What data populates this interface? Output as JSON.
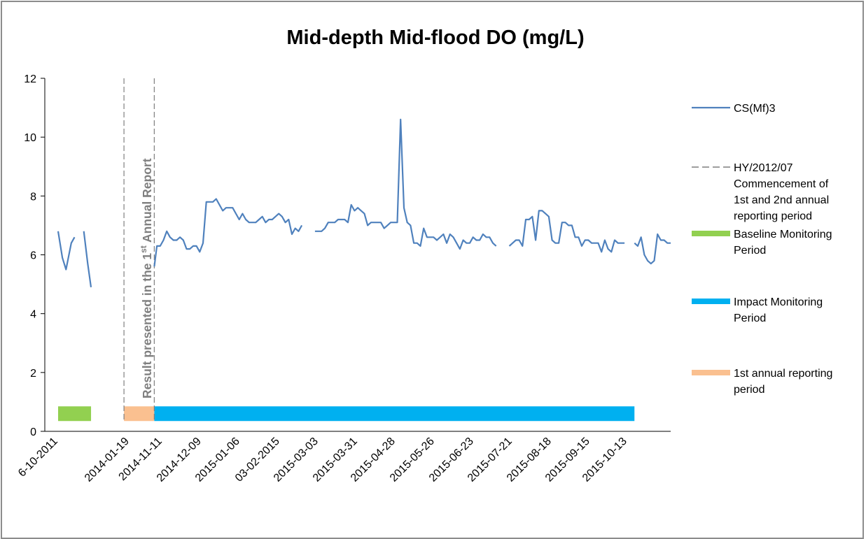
{
  "chart_data": {
    "type": "line",
    "title": "Mid-depth Mid-flood DO (mg/L)",
    "xlabel": "",
    "ylabel": "",
    "ylim": [
      0,
      12
    ],
    "yticks": [
      "0",
      "2",
      "4",
      "6",
      "8",
      "10",
      "12"
    ],
    "xtick_labels": [
      "6-10-2011",
      "2014-01-19",
      "2014-11-11",
      "2014-12-09",
      "2015-01-06",
      "03-02-2015",
      "2015-03-03",
      "2015-03-31",
      "2015-04-28",
      "2015-05-26",
      "2015-06-23",
      "2015-07-21",
      "2015-08-18",
      "2015-09-15",
      "2015-10-13"
    ],
    "grid": false,
    "legend_position": "right",
    "series": [
      {
        "name": "CS(Mf)3",
        "color": "#4f81bd",
        "x_note": "sample sequence (x positions follow the categorical date axis)",
        "segments": [
          [
            [
              0.0,
              6.8
            ],
            [
              0.13,
              5.9
            ],
            [
              0.24,
              5.5
            ],
            [
              0.4,
              6.4
            ],
            [
              0.5,
              6.6
            ]
          ],
          [
            [
              0.78,
              6.8
            ],
            [
              0.9,
              5.7
            ],
            [
              1.0,
              4.9
            ]
          ],
          [
            [
              2.92,
              5.6
            ],
            [
              3.0,
              6.3
            ],
            [
              3.1,
              6.3
            ],
            [
              3.2,
              6.5
            ],
            [
              3.3,
              6.8
            ],
            [
              3.4,
              6.6
            ],
            [
              3.5,
              6.5
            ],
            [
              3.6,
              6.5
            ],
            [
              3.7,
              6.6
            ],
            [
              3.8,
              6.5
            ],
            [
              3.9,
              6.2
            ],
            [
              4.0,
              6.2
            ],
            [
              4.1,
              6.3
            ],
            [
              4.2,
              6.3
            ],
            [
              4.3,
              6.1
            ],
            [
              4.4,
              6.4
            ],
            [
              4.5,
              7.8
            ],
            [
              4.6,
              7.8
            ],
            [
              4.7,
              7.8
            ],
            [
              4.8,
              7.9
            ],
            [
              4.9,
              7.7
            ],
            [
              5.0,
              7.5
            ],
            [
              5.1,
              7.6
            ],
            [
              5.2,
              7.6
            ],
            [
              5.3,
              7.6
            ],
            [
              5.4,
              7.4
            ],
            [
              5.5,
              7.2
            ],
            [
              5.6,
              7.4
            ],
            [
              5.7,
              7.2
            ],
            [
              5.8,
              7.1
            ],
            [
              5.9,
              7.1
            ],
            [
              6.0,
              7.1
            ],
            [
              6.1,
              7.2
            ],
            [
              6.2,
              7.3
            ],
            [
              6.3,
              7.1
            ],
            [
              6.4,
              7.2
            ],
            [
              6.5,
              7.2
            ],
            [
              6.6,
              7.3
            ],
            [
              6.7,
              7.4
            ],
            [
              6.8,
              7.3
            ],
            [
              6.9,
              7.1
            ],
            [
              7.0,
              7.2
            ],
            [
              7.1,
              6.7
            ],
            [
              7.2,
              6.9
            ],
            [
              7.3,
              6.8
            ],
            [
              7.4,
              7.0
            ]
          ]
        ],
        "extra_segments": [
          [
            [
              7.8,
              6.8
            ],
            [
              8.0,
              6.8
            ],
            [
              8.1,
              6.9
            ],
            [
              8.2,
              7.1
            ],
            [
              8.3,
              7.1
            ],
            [
              8.4,
              7.1
            ],
            [
              8.5,
              7.2
            ],
            [
              8.6,
              7.2
            ],
            [
              8.7,
              7.2
            ],
            [
              8.8,
              7.1
            ],
            [
              8.9,
              7.7
            ],
            [
              9.0,
              7.5
            ],
            [
              9.1,
              7.6
            ],
            [
              9.2,
              7.5
            ],
            [
              9.3,
              7.4
            ],
            [
              9.4,
              7.0
            ],
            [
              9.5,
              7.1
            ],
            [
              9.6,
              7.1
            ],
            [
              9.7,
              7.1
            ],
            [
              9.8,
              7.1
            ],
            [
              9.9,
              6.9
            ],
            [
              10.0,
              7.0
            ],
            [
              10.1,
              7.1
            ],
            [
              10.3,
              7.1
            ],
            [
              10.4,
              10.6
            ],
            [
              10.5,
              7.6
            ],
            [
              10.6,
              7.1
            ],
            [
              10.7,
              7.0
            ],
            [
              10.8,
              6.4
            ],
            [
              10.9,
              6.4
            ],
            [
              11.0,
              6.3
            ],
            [
              11.1,
              6.9
            ],
            [
              11.2,
              6.6
            ],
            [
              11.3,
              6.6
            ],
            [
              11.4,
              6.6
            ],
            [
              11.5,
              6.5
            ],
            [
              11.6,
              6.6
            ],
            [
              11.7,
              6.7
            ],
            [
              11.8,
              6.4
            ],
            [
              11.9,
              6.7
            ],
            [
              12.0,
              6.6
            ],
            [
              12.1,
              6.4
            ],
            [
              12.2,
              6.2
            ],
            [
              12.3,
              6.5
            ],
            [
              12.4,
              6.4
            ],
            [
              12.5,
              6.4
            ],
            [
              12.6,
              6.6
            ],
            [
              12.7,
              6.5
            ],
            [
              12.8,
              6.5
            ],
            [
              12.9,
              6.7
            ],
            [
              13.0,
              6.6
            ],
            [
              13.1,
              6.6
            ],
            [
              13.2,
              6.4
            ],
            [
              13.3,
              6.3
            ]
          ],
          [
            [
              13.7,
              6.3
            ],
            [
              13.8,
              6.4
            ],
            [
              13.9,
              6.5
            ],
            [
              14.0,
              6.5
            ],
            [
              14.1,
              6.3
            ],
            [
              14.2,
              7.2
            ],
            [
              14.3,
              7.2
            ],
            [
              14.4,
              7.3
            ],
            [
              14.5,
              6.5
            ],
            [
              14.6,
              7.5
            ],
            [
              14.7,
              7.5
            ],
            [
              14.8,
              7.4
            ],
            [
              14.9,
              7.3
            ],
            [
              15.0,
              6.5
            ],
            [
              15.1,
              6.4
            ],
            [
              15.2,
              6.4
            ],
            [
              15.3,
              7.1
            ],
            [
              15.4,
              7.1
            ],
            [
              15.5,
              7.0
            ],
            [
              15.6,
              7.0
            ],
            [
              15.7,
              6.6
            ],
            [
              15.8,
              6.6
            ],
            [
              15.9,
              6.3
            ],
            [
              16.0,
              6.5
            ],
            [
              16.1,
              6.5
            ],
            [
              16.2,
              6.4
            ],
            [
              16.3,
              6.4
            ],
            [
              16.4,
              6.4
            ],
            [
              16.5,
              6.1
            ],
            [
              16.6,
              6.5
            ],
            [
              16.7,
              6.2
            ],
            [
              16.8,
              6.1
            ],
            [
              16.9,
              6.5
            ],
            [
              17.0,
              6.4
            ],
            [
              17.1,
              6.4
            ],
            [
              17.2,
              6.4
            ]
          ],
          [
            [
              17.5,
              6.4
            ],
            [
              17.6,
              6.3
            ],
            [
              17.7,
              6.6
            ],
            [
              17.8,
              6.0
            ],
            [
              17.9,
              5.8
            ],
            [
              18.0,
              5.7
            ],
            [
              18.1,
              5.8
            ],
            [
              18.2,
              6.7
            ],
            [
              18.3,
              6.5
            ],
            [
              18.4,
              6.5
            ],
            [
              18.5,
              6.4
            ],
            [
              18.6,
              6.4
            ]
          ]
        ]
      }
    ],
    "period_bars": [
      {
        "name": "Baseline Monitoring Period",
        "color": "#92d050",
        "x_start": 0.0,
        "x_end": 1.0,
        "y": 0.6
      },
      {
        "name": "1st annual reporting period",
        "color": "#fac090",
        "x_start": 2.0,
        "x_end": 2.92,
        "y": 0.6
      },
      {
        "name": "Impact Monitoring Period",
        "color": "#00b0f0",
        "x_start": 2.92,
        "x_end": 17.5,
        "y": 0.6
      }
    ],
    "vertical_lines": [
      {
        "name": "HY/2012/07 Commencement of 1st and 2nd annual reporting period",
        "x": 2.0,
        "style": "dashed",
        "color": "#7f7f7f"
      },
      {
        "name": "HY/2012/07 Commencement of 1st and 2nd annual reporting period",
        "x": 2.92,
        "style": "dashed",
        "color": "#7f7f7f"
      }
    ],
    "annotation": {
      "text_main": "Result presented in the 1",
      "text_sup": "st",
      "text_end": " Annual Report",
      "color": "#7f7f7f"
    },
    "legend": [
      {
        "kind": "line",
        "color": "#4f81bd",
        "lines": [
          "CS(Mf)3"
        ]
      },
      {
        "kind": "dash",
        "color": "#7f7f7f",
        "lines": [
          "HY/2012/07",
          "Commencement of",
          "1st and 2nd annual",
          "reporting period"
        ]
      },
      {
        "kind": "bar",
        "color": "#92d050",
        "lines": [
          "Baseline Monitoring",
          "Period"
        ]
      },
      {
        "kind": "bar",
        "color": "#00b0f0",
        "lines": [
          "Impact Monitoring",
          "Period"
        ]
      },
      {
        "kind": "bar",
        "color": "#fac090",
        "lines": [
          "1st annual reporting",
          "period"
        ]
      }
    ]
  }
}
